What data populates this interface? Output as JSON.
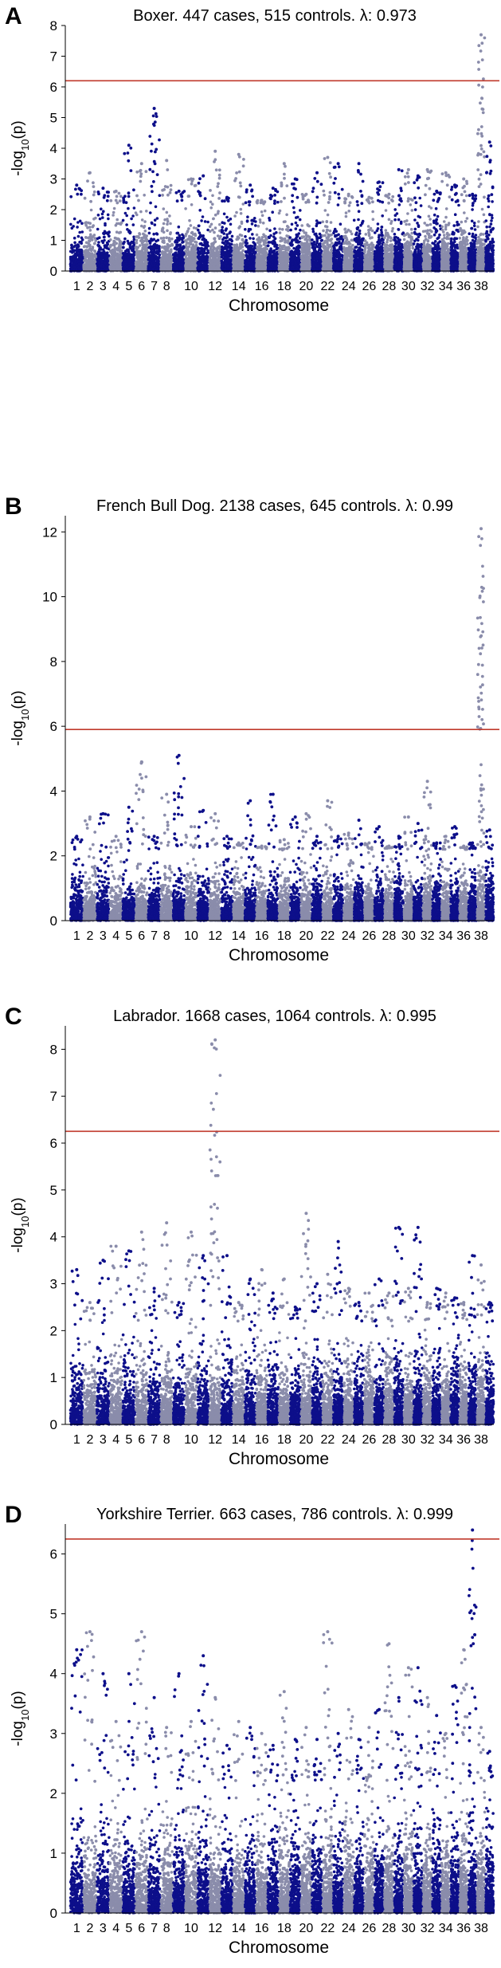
{
  "figure": {
    "xlabel": "Chromosome",
    "ylabel_prefix": "-log",
    "ylabel_sub": "10",
    "ylabel_suffix": "(p)",
    "x_tick_labels": [
      "1",
      "2",
      "3",
      "4",
      "5",
      "6",
      "7",
      "8",
      "10",
      "12",
      "14",
      "16",
      "18",
      "20",
      "22",
      "24",
      "26",
      "28",
      "30",
      "32",
      "34",
      "36",
      "38"
    ],
    "colors": {
      "dark": "#0d0f8a",
      "light": "#8a8cab",
      "threshold": "#c0392b",
      "axis": "#000000"
    }
  },
  "chart_data": [
    {
      "type": "scatter",
      "panel_letter": "A",
      "title": "Boxer. 447 cases, 515 controls. λ: 0.973",
      "xlabel": "Chromosome",
      "ylabel": "-log10(p)",
      "ylim": [
        0,
        8
      ],
      "y_ticks": [
        0,
        1,
        2,
        3,
        4,
        5,
        6,
        7,
        8
      ],
      "threshold": 6.2,
      "chromosome_max": [
        2.8,
        3.2,
        2.7,
        2.6,
        4.1,
        3.5,
        5.3,
        3.6,
        2.6,
        3.0,
        3.1,
        3.9,
        2.4,
        3.8,
        2.8,
        2.3,
        2.7,
        3.5,
        3.0,
        2.5,
        3.2,
        3.7,
        3.5,
        2.5,
        3.5,
        2.4,
        2.9,
        2.5,
        3.3,
        3.3,
        3.1,
        3.3,
        2.6,
        3.2,
        2.8,
        3.0,
        2.5,
        7.7,
        4.2
      ],
      "peak_chromosome": 38
    },
    {
      "type": "scatter",
      "panel_letter": "B",
      "title": "French Bull Dog. 2138 cases, 645 controls. λ: 0.99",
      "xlabel": "Chromosome",
      "ylabel": "-log10(p)",
      "ylim": [
        0,
        12.5
      ],
      "y_ticks": [
        0,
        2,
        4,
        6,
        8,
        10,
        12
      ],
      "threshold": 5.9,
      "chromosome_max": [
        2.6,
        3.2,
        3.3,
        2.6,
        3.5,
        4.9,
        2.6,
        3.9,
        5.1,
        2.9,
        3.4,
        3.3,
        2.6,
        2.4,
        3.7,
        2.3,
        3.9,
        2.5,
        3.2,
        3.3,
        2.6,
        3.7,
        2.6,
        2.7,
        3.1,
        2.4,
        2.9,
        2.3,
        2.6,
        3.2,
        3.0,
        4.3,
        2.4,
        2.6,
        2.9,
        2.3,
        2.4,
        12.1,
        2.8
      ],
      "peak_chromosome": 38
    },
    {
      "type": "scatter",
      "panel_letter": "C",
      "title": "Labrador. 1668 cases, 1064 controls. λ: 0.995",
      "xlabel": "Chromosome",
      "ylabel": "-log10(p)",
      "ylim": [
        0,
        8.5
      ],
      "y_ticks": [
        0,
        1,
        2,
        3,
        4,
        5,
        6,
        7,
        8
      ],
      "threshold": 6.25,
      "chromosome_max": [
        3.3,
        2.6,
        3.5,
        3.8,
        3.7,
        4.1,
        2.9,
        4.3,
        2.6,
        4.1,
        3.6,
        8.2,
        3.6,
        2.6,
        3.1,
        3.3,
        2.8,
        3.1,
        2.5,
        4.5,
        3.0,
        3.2,
        3.9,
        2.9,
        2.6,
        2.8,
        3.1,
        2.8,
        4.2,
        2.9,
        4.2,
        2.6,
        2.9,
        2.8,
        2.7,
        2.6,
        3.6,
        3.4,
        2.6
      ],
      "peak_chromosome": 12
    },
    {
      "type": "scatter",
      "panel_letter": "D",
      "title": "Yorkshire Terrier. 663 cases, 786 controls. λ: 0.999",
      "xlabel": "Chromosome",
      "ylabel": "-log10(p)",
      "ylim": [
        0,
        6.5
      ],
      "y_ticks": [
        0,
        1,
        2,
        3,
        4,
        5,
        6
      ],
      "threshold": 6.25,
      "chromosome_max": [
        4.4,
        4.7,
        4.0,
        3.2,
        4.0,
        4.7,
        3.6,
        3.1,
        4.0,
        3.2,
        4.3,
        3.6,
        2.8,
        3.2,
        3.1,
        3.0,
        2.8,
        3.7,
        2.9,
        3.1,
        2.9,
        4.7,
        3.0,
        3.4,
        2.9,
        3.1,
        3.4,
        4.5,
        3.6,
        4.1,
        4.1,
        3.6,
        3.3,
        3.0,
        3.8,
        4.4,
        6.4,
        3.1,
        2.7
      ],
      "peak_chromosome": 37
    }
  ]
}
